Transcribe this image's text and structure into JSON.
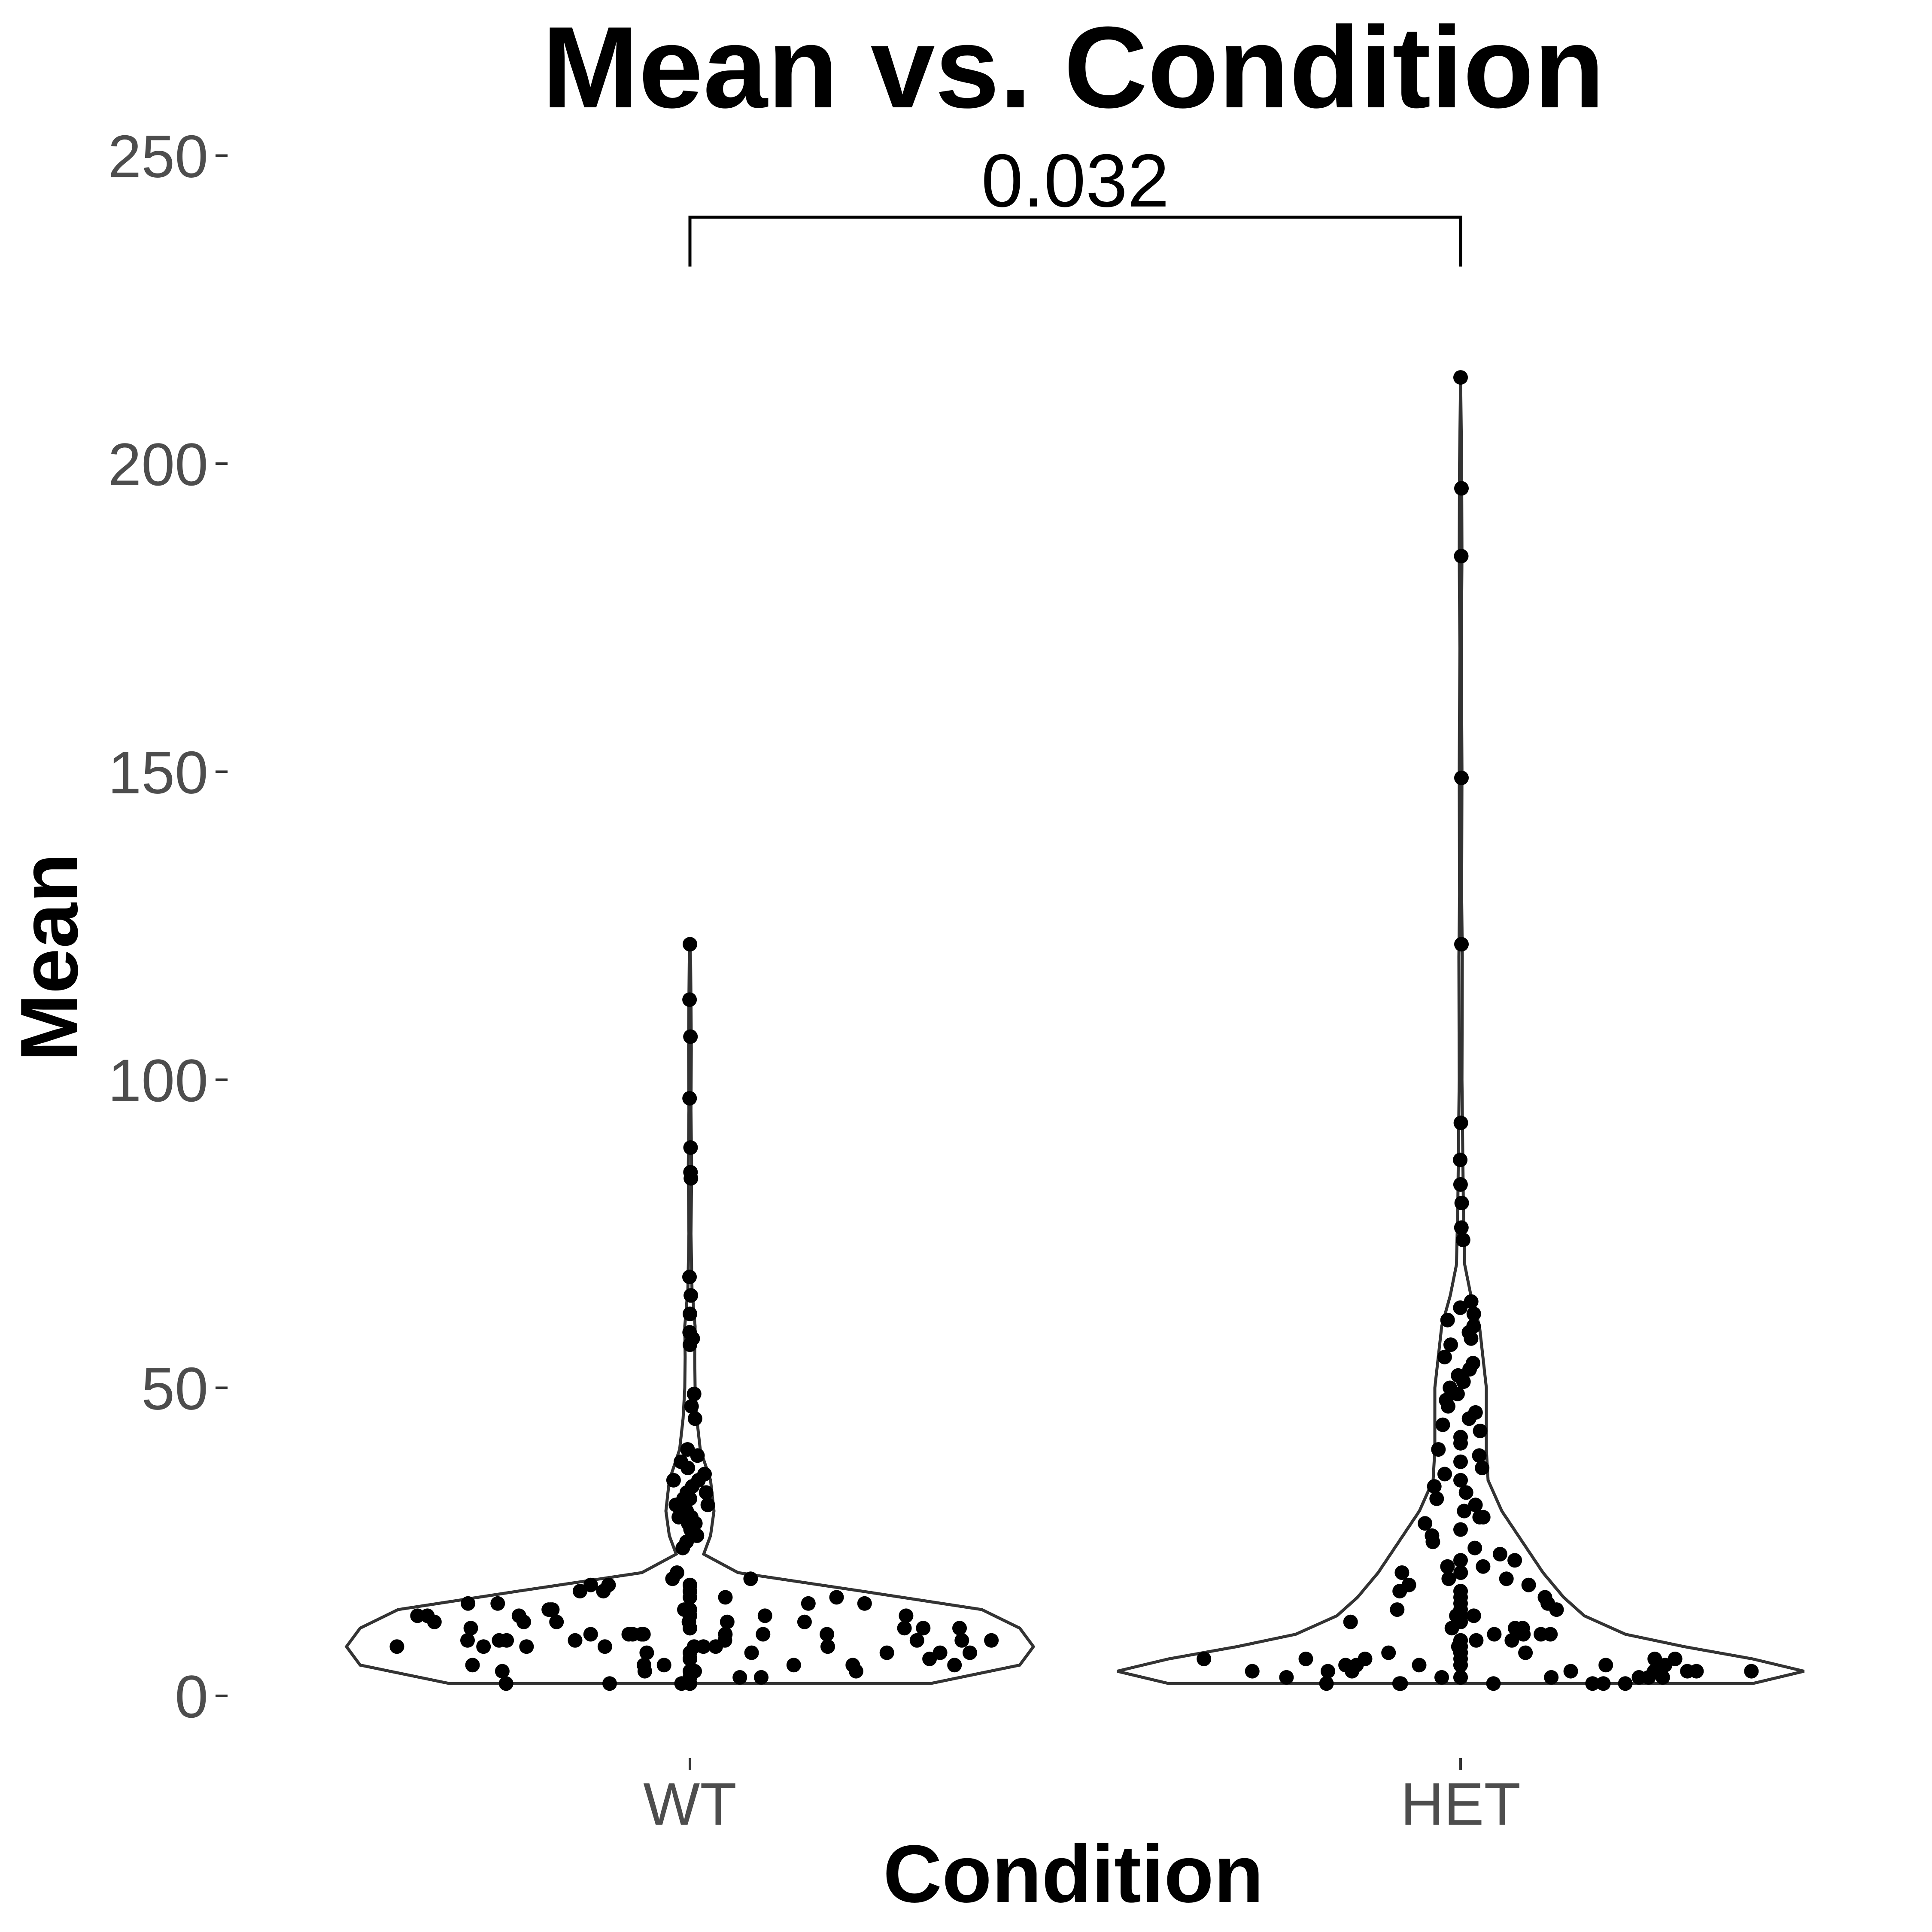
{
  "chart_data": {
    "type": "violin",
    "title": "Mean vs. Condition",
    "xlabel": "Condition",
    "ylabel": "Mean",
    "categories": [
      "WT",
      "HET"
    ],
    "ylim": [
      -10,
      255
    ],
    "yticks": [
      0,
      50,
      100,
      150,
      200,
      250
    ],
    "grid": false,
    "legend": "none",
    "annotation": {
      "text": "0.032",
      "from": "WT",
      "to": "HET",
      "y": 240,
      "y_low": 232
    },
    "series": [
      {
        "category": "WT",
        "values": [
          122,
          113,
          107,
          97,
          89,
          85,
          84,
          68,
          65,
          62,
          59,
          58,
          57,
          49,
          47,
          45,
          40,
          39,
          38,
          37,
          36,
          35,
          35,
          34,
          33,
          33,
          32,
          32,
          31,
          31,
          30,
          30,
          29,
          29,
          28,
          28,
          27,
          26,
          25,
          24,
          20,
          19,
          19,
          18,
          18,
          18,
          17,
          17,
          17,
          16,
          16,
          16,
          15,
          15,
          15,
          15,
          14,
          14,
          14,
          14,
          14,
          13,
          13,
          13,
          13,
          13,
          13,
          12,
          12,
          12,
          12,
          12,
          12,
          11,
          11,
          11,
          11,
          11,
          11,
          11,
          10,
          10,
          10,
          10,
          10,
          10,
          10,
          10,
          9,
          9,
          9,
          9,
          9,
          9,
          9,
          9,
          8,
          8,
          8,
          8,
          8,
          8,
          8,
          8,
          7,
          7,
          7,
          7,
          7,
          7,
          7,
          6,
          6,
          6,
          6,
          6,
          6,
          6,
          5,
          5,
          5,
          5,
          5,
          5,
          4,
          4,
          4,
          4,
          4,
          3,
          3,
          3,
          3,
          3,
          2,
          2,
          2,
          2,
          2
        ],
        "density": [
          [
            2,
            0.7
          ],
          [
            5,
            0.96
          ],
          [
            8,
            1.0
          ],
          [
            11,
            0.96
          ],
          [
            14,
            0.85
          ],
          [
            17,
            0.5
          ],
          [
            20,
            0.14
          ],
          [
            23,
            0.04
          ],
          [
            26,
            0.06
          ],
          [
            30,
            0.07
          ],
          [
            35,
            0.06
          ],
          [
            40,
            0.03
          ],
          [
            45,
            0.02
          ],
          [
            50,
            0.015
          ],
          [
            55,
            0.014
          ],
          [
            60,
            0.015
          ],
          [
            66,
            0.006
          ],
          [
            75,
            0.003
          ],
          [
            85,
            0.005
          ],
          [
            95,
            0.003
          ],
          [
            105,
            0.004
          ],
          [
            113,
            0.003
          ],
          [
            119,
            0.002
          ],
          [
            122,
            0.0
          ]
        ]
      },
      {
        "category": "HET",
        "values": [
          214,
          196,
          185,
          149,
          122,
          93,
          87,
          83,
          80,
          76,
          74,
          64,
          63,
          62,
          61,
          60,
          59,
          58,
          57,
          55,
          54,
          53,
          52,
          51,
          50,
          49,
          48,
          47,
          46,
          45,
          44,
          43,
          42,
          41,
          40,
          39,
          38,
          37,
          36,
          35,
          34,
          33,
          32,
          31,
          30,
          29,
          29,
          28,
          27,
          26,
          25,
          24,
          23,
          22,
          22,
          21,
          21,
          20,
          20,
          19,
          19,
          18,
          18,
          17,
          17,
          16,
          16,
          15,
          15,
          14,
          14,
          14,
          13,
          13,
          13,
          12,
          12,
          12,
          11,
          11,
          11,
          10,
          10,
          10,
          10,
          9,
          9,
          9,
          9,
          8,
          8,
          8,
          8,
          7,
          7,
          7,
          7,
          7,
          6,
          6,
          6,
          6,
          6,
          6,
          5,
          5,
          5,
          5,
          5,
          5,
          5,
          4,
          4,
          4,
          4,
          4,
          4,
          4,
          4,
          3,
          3,
          3,
          3,
          3,
          3,
          3,
          3,
          2,
          2,
          2,
          2,
          2,
          2,
          2
        ],
        "density": [
          [
            2,
            0.85
          ],
          [
            4,
            1.0
          ],
          [
            6,
            0.85
          ],
          [
            8,
            0.65
          ],
          [
            10,
            0.48
          ],
          [
            13,
            0.36
          ],
          [
            16,
            0.3
          ],
          [
            20,
            0.24
          ],
          [
            25,
            0.18
          ],
          [
            30,
            0.12
          ],
          [
            35,
            0.08
          ],
          [
            40,
            0.075
          ],
          [
            45,
            0.075
          ],
          [
            50,
            0.075
          ],
          [
            55,
            0.065
          ],
          [
            60,
            0.055
          ],
          [
            65,
            0.03
          ],
          [
            70,
            0.012
          ],
          [
            80,
            0.008
          ],
          [
            90,
            0.006
          ],
          [
            100,
            0.004
          ],
          [
            120,
            0.005
          ],
          [
            130,
            0.003
          ],
          [
            150,
            0.004
          ],
          [
            170,
            0.002
          ],
          [
            185,
            0.004
          ],
          [
            200,
            0.003
          ],
          [
            214,
            0.0
          ]
        ]
      }
    ]
  }
}
